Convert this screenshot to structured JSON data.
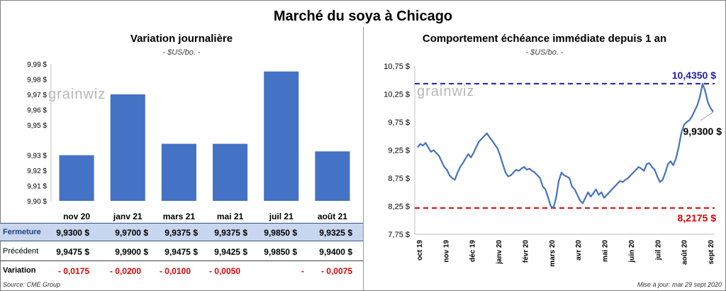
{
  "title": "Marché du soya à Chicago",
  "left": {
    "title": "Variation journalière",
    "subtitle": "- $US/bo. -"
  },
  "right": {
    "title": "Comportement échéance immédiate depuis 1 an",
    "subtitle": "- $US/bo. -"
  },
  "logo_text": "grainwiz",
  "table": {
    "rows": [
      {
        "label": "Fermeture",
        "cells": [
          "9,9300 $",
          "9,9700 $",
          "9,9375 $",
          "9,9375 $",
          "9,9850 $",
          "9,9325 $"
        ]
      },
      {
        "label": "Précédent",
        "cells": [
          "9,9475 $",
          "9,9900 $",
          "9,9475 $",
          "9,9425 $",
          "9,9850 $",
          "9,9400 $"
        ]
      },
      {
        "label": "Variation",
        "cells": [
          "- 0,0175",
          "- 0,0200",
          "- 0,0100",
          "- 0,0050",
          "-",
          "- 0,0075"
        ]
      }
    ]
  },
  "source": "Source: CME Group",
  "updated": "Mise à jour: mar 29 sept 2020",
  "colors": {
    "bar": "#4472c4",
    "line": "#4472c4",
    "high": "#1f1fb0",
    "low": "#e00000"
  },
  "chart_data": [
    {
      "type": "bar",
      "title": "Variation journalière",
      "categories": [
        "nov 20",
        "janv 21",
        "mars 21",
        "mai 21",
        "juil 21",
        "août 21"
      ],
      "values": [
        9.93,
        9.97,
        9.9375,
        9.9375,
        9.985,
        9.9325
      ],
      "ylim": [
        9.9,
        9.99
      ],
      "yticks": [
        9.9,
        9.91,
        9.92,
        9.93,
        9.95,
        9.96,
        9.97,
        9.98,
        9.99
      ],
      "ytick_labels": [
        "9,90 $",
        "9,91 $",
        "9,92 $",
        "9,93 $",
        "9,95 $",
        "9,96 $",
        "9,97 $",
        "9,98 $",
        "9,99 $"
      ],
      "grid": false
    },
    {
      "type": "line",
      "title": "Comportement échéance immédiate depuis 1 an",
      "ylim": [
        7.75,
        10.75
      ],
      "yticks": [
        7.75,
        8.25,
        8.75,
        9.25,
        9.75,
        10.25,
        10.75
      ],
      "ytick_labels": [
        "7,75 $",
        "8,25 $",
        "8,75 $",
        "9,25 $",
        "9,75 $",
        "10,25 $",
        "10,75 $"
      ],
      "xticks": [
        "oct 19",
        "nov 19",
        "déc 19",
        "janv 20",
        "févr 20",
        "mars 20",
        "avr 20",
        "mai 20",
        "juin 20",
        "juil 20",
        "août 20",
        "sept 20"
      ],
      "high": {
        "value": 10.435,
        "label": "10,4350 $"
      },
      "low": {
        "value": 8.2175,
        "label": "8,2175 $"
      },
      "last": {
        "value": 9.93,
        "label": "9,9300 $"
      },
      "series": [
        {
          "values": [
            9.3,
            9.36,
            9.33,
            9.38,
            9.3,
            9.22,
            9.25,
            9.2,
            9.15,
            9.05,
            8.95,
            8.9,
            8.8,
            8.75,
            8.72,
            8.85,
            8.95,
            9.02,
            9.1,
            9.18,
            9.12,
            9.2,
            9.3,
            9.4,
            9.45,
            9.5,
            9.55,
            9.48,
            9.42,
            9.35,
            9.28,
            9.15,
            9.0,
            8.85,
            8.78,
            8.8,
            8.85,
            8.9,
            8.88,
            8.92,
            8.95,
            8.9,
            8.92,
            8.88,
            8.85,
            8.8,
            8.75,
            8.6,
            8.55,
            8.4,
            8.25,
            8.22,
            8.4,
            8.7,
            8.85,
            8.8,
            8.78,
            8.75,
            8.6,
            8.55,
            8.45,
            8.35,
            8.3,
            8.4,
            8.5,
            8.42,
            8.48,
            8.55,
            8.45,
            8.5,
            8.4,
            8.45,
            8.5,
            8.55,
            8.6,
            8.65,
            8.7,
            8.68,
            8.72,
            8.75,
            8.8,
            8.85,
            8.9,
            8.95,
            8.92,
            8.88,
            9.0,
            9.02,
            8.95,
            8.9,
            8.78,
            8.68,
            8.72,
            8.85,
            9.0,
            9.05,
            8.98,
            9.1,
            9.3,
            9.55,
            9.7,
            9.75,
            9.78,
            9.85,
            9.95,
            10.05,
            10.2,
            10.435,
            10.3,
            10.1,
            10.0,
            9.93
          ]
        }
      ]
    }
  ]
}
